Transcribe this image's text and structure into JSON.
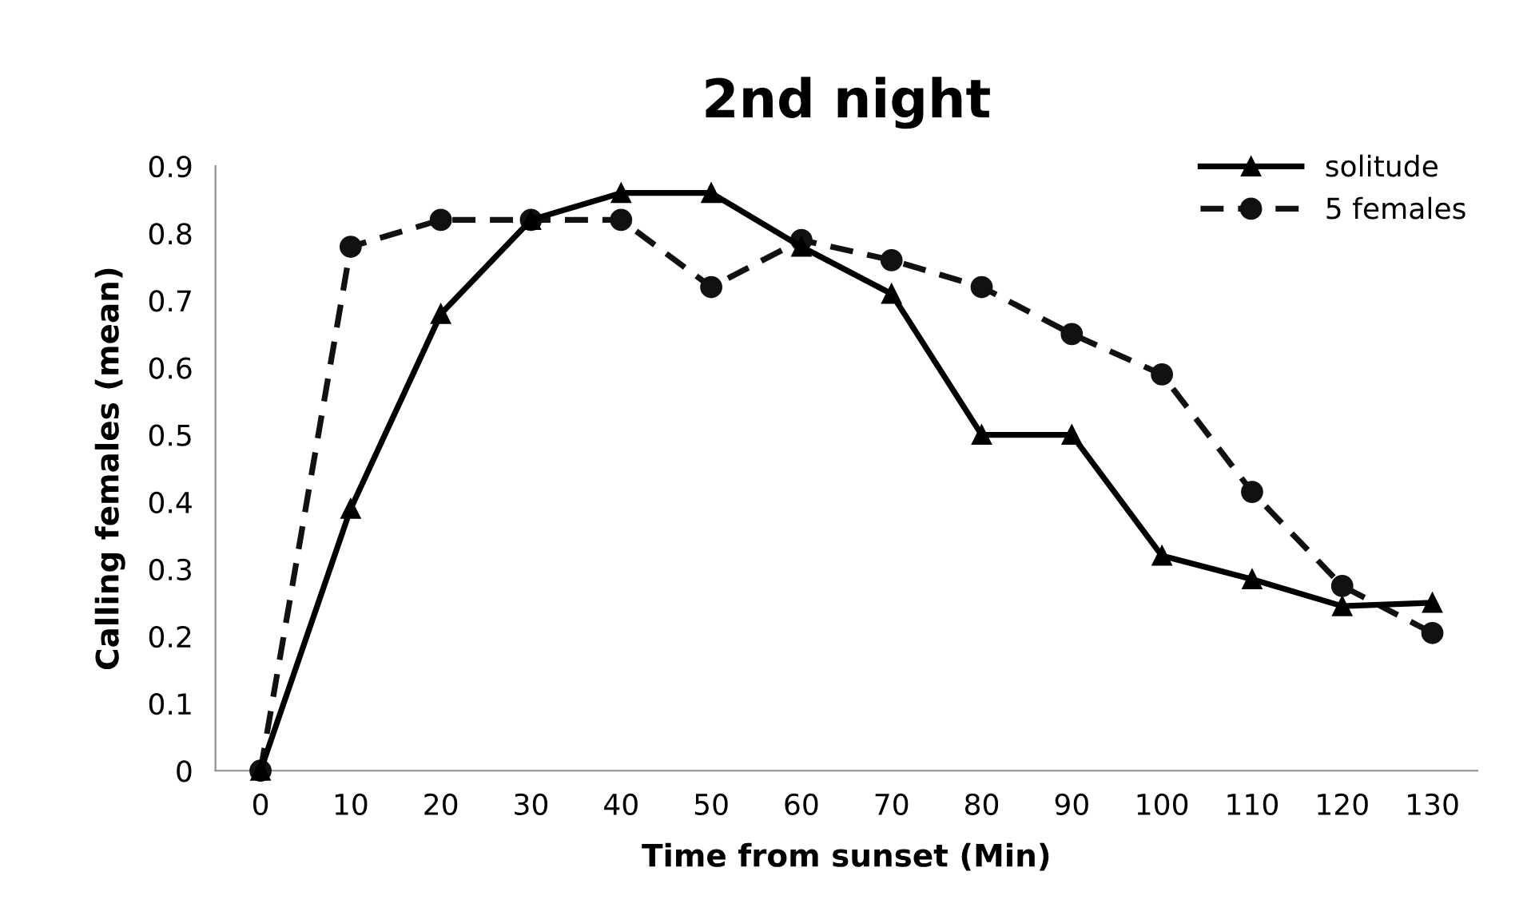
{
  "chart_data": {
    "type": "line",
    "title": "2nd night",
    "xlabel": "Time from sunset (Min)",
    "ylabel": "Calling females (mean)",
    "categories": [
      "0",
      "10",
      "20",
      "30",
      "40",
      "50",
      "60",
      "70",
      "80",
      "90",
      "100",
      "110",
      "120",
      "130"
    ],
    "series": [
      {
        "name": "solitude",
        "color": "#000000",
        "marker": "triangle",
        "line_style": "solid",
        "values": [
          0,
          0.39,
          0.68,
          0.82,
          0.86,
          0.86,
          0.78,
          0.71,
          0.5,
          0.5,
          0.32,
          0.285,
          0.245,
          0.25
        ]
      },
      {
        "name": "5 females",
        "color": "#111111",
        "marker": "circle",
        "line_style": "dashed",
        "values": [
          0,
          0.78,
          0.82,
          0.82,
          0.82,
          0.72,
          0.79,
          0.76,
          0.72,
          0.65,
          0.59,
          0.415,
          0.275,
          0.205
        ]
      }
    ],
    "ylim": [
      0,
      0.9
    ],
    "yticks": [
      0,
      0.1,
      0.2,
      0.3,
      0.4,
      0.5,
      0.6,
      0.7,
      0.8,
      0.9
    ],
    "grid": false,
    "legend": "top right"
  }
}
